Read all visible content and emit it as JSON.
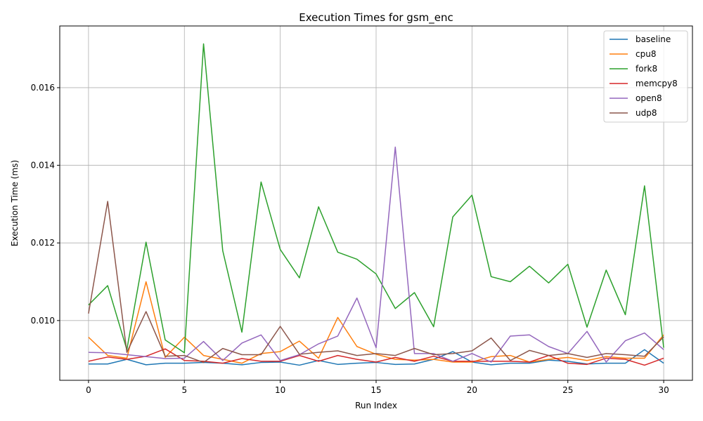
{
  "chart_data": {
    "type": "line",
    "title": "Execution Times for gsm_enc",
    "xlabel": "Run Index",
    "ylabel": "Execution Time (ms)",
    "xlim": [
      -1.5,
      31.5
    ],
    "ylim": [
      0.00846,
      0.01759
    ],
    "xticks": [
      0,
      5,
      10,
      15,
      20,
      25,
      30
    ],
    "yticks": [
      0.01,
      0.012,
      0.014,
      0.016
    ],
    "ytick_labels": [
      "0.010",
      "0.012",
      "0.014",
      "0.016"
    ],
    "grid": true,
    "legend_position": "top-right",
    "x": [
      0,
      1,
      2,
      3,
      4,
      5,
      6,
      7,
      8,
      9,
      10,
      11,
      12,
      13,
      14,
      15,
      16,
      17,
      18,
      19,
      20,
      21,
      22,
      23,
      24,
      25,
      26,
      27,
      28,
      29,
      30
    ],
    "series": [
      {
        "name": "baseline",
        "color": "#1f77b4",
        "values": [
          0.00888,
          0.00888,
          0.009,
          0.00886,
          0.0089,
          0.0089,
          0.00892,
          0.0089,
          0.00886,
          0.00892,
          0.00893,
          0.00885,
          0.00897,
          0.00887,
          0.0089,
          0.00892,
          0.00887,
          0.00888,
          0.009,
          0.0092,
          0.00893,
          0.00886,
          0.0089,
          0.0089,
          0.00898,
          0.00895,
          0.00888,
          0.0089,
          0.0089,
          0.00925,
          0.0089
        ]
      },
      {
        "name": "cpu8",
        "color": "#ff7f0e",
        "values": [
          0.00957,
          0.0091,
          0.00903,
          0.011,
          0.00905,
          0.00957,
          0.0091,
          0.009,
          0.0089,
          0.00915,
          0.0092,
          0.00947,
          0.00903,
          0.01008,
          0.00933,
          0.00913,
          0.009,
          0.00898,
          0.009,
          0.00893,
          0.00893,
          0.00907,
          0.0091,
          0.00893,
          0.009,
          0.00905,
          0.00897,
          0.00907,
          0.00903,
          0.00903,
          0.00963
        ]
      },
      {
        "name": "fork8",
        "color": "#2ca02c",
        "values": [
          0.0104,
          0.0109,
          0.00925,
          0.01202,
          0.0095,
          0.00917,
          0.01713,
          0.0118,
          0.0097,
          0.01357,
          0.01183,
          0.0111,
          0.01293,
          0.01176,
          0.01158,
          0.0112,
          0.01031,
          0.01072,
          0.00984,
          0.01267,
          0.01323,
          0.01113,
          0.011,
          0.0114,
          0.01097,
          0.01145,
          0.00983,
          0.0113,
          0.01015,
          0.01347,
          0.0093
        ]
      },
      {
        "name": "memcpy8",
        "color": "#d62728",
        "values": [
          0.00895,
          0.00906,
          0.009,
          0.00908,
          0.00927,
          0.00897,
          0.00895,
          0.0089,
          0.00902,
          0.00895,
          0.00895,
          0.0091,
          0.00895,
          0.0091,
          0.009,
          0.00893,
          0.00905,
          0.00895,
          0.00908,
          0.00895,
          0.00895,
          0.00895,
          0.00895,
          0.00893,
          0.0091,
          0.0089,
          0.00887,
          0.00903,
          0.009,
          0.00885,
          0.00903
        ]
      },
      {
        "name": "open8",
        "color": "#9467bd",
        "values": [
          0.00918,
          0.00917,
          0.00912,
          0.00907,
          0.00902,
          0.00903,
          0.00946,
          0.00897,
          0.00942,
          0.00963,
          0.00897,
          0.00912,
          0.0094,
          0.0096,
          0.01058,
          0.0093,
          0.01447,
          0.00915,
          0.00915,
          0.00895,
          0.00915,
          0.00893,
          0.0096,
          0.00963,
          0.00933,
          0.00915,
          0.00972,
          0.00893,
          0.00948,
          0.00968,
          0.00925
        ]
      },
      {
        "name": "udp8",
        "color": "#8c564b",
        "values": [
          0.01018,
          0.01307,
          0.00918,
          0.01023,
          0.00908,
          0.0091,
          0.00892,
          0.00928,
          0.00912,
          0.00912,
          0.00985,
          0.00913,
          0.00918,
          0.00922,
          0.0091,
          0.00915,
          0.0091,
          0.00928,
          0.00912,
          0.00915,
          0.00922,
          0.00955,
          0.00897,
          0.00923,
          0.0091,
          0.00915,
          0.00905,
          0.00915,
          0.00912,
          0.00908,
          0.00958
        ]
      }
    ]
  }
}
